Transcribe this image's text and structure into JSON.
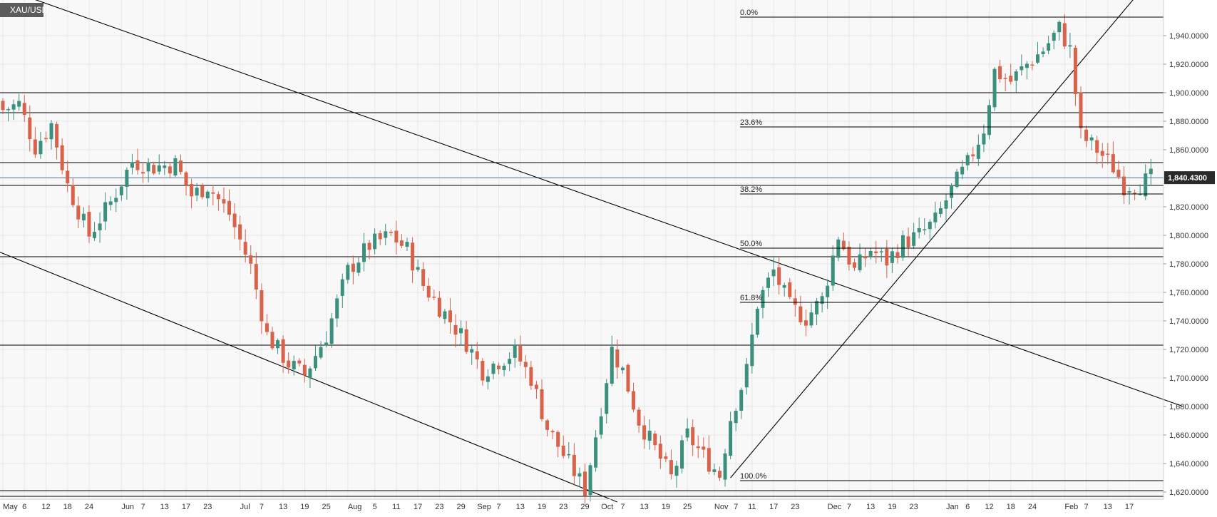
{
  "symbol": "XAU/USD",
  "chart_data": {
    "type": "candlestick",
    "title": "XAU/USD",
    "ylim": [
      1615,
      1965
    ],
    "y_ticks": [
      1620,
      1640,
      1660,
      1680,
      1700,
      1720,
      1740,
      1760,
      1780,
      1800,
      1820,
      1840,
      1860,
      1880,
      1900,
      1920,
      1940
    ],
    "y_tick_labels": [
      "1,620.0000",
      "1,640.0000",
      "1,660.0000",
      "1,680.0000",
      "1,700.0000",
      "1,720.0000",
      "1,740.0000",
      "1,760.0000",
      "1,780.0000",
      "1,800.0000",
      "1,820.0000",
      "1,840.0000",
      "1,860.0000",
      "1,880.0000",
      "1,900.0000",
      "1,920.0000",
      "1,940.0000"
    ],
    "x_ticks": [
      {
        "label": "May",
        "i": 0
      },
      {
        "label": "6",
        "i": 4
      },
      {
        "label": "12",
        "i": 8
      },
      {
        "label": "18",
        "i": 12
      },
      {
        "label": "24",
        "i": 16
      },
      {
        "label": "Jun",
        "i": 22
      },
      {
        "label": "7",
        "i": 26
      },
      {
        "label": "13",
        "i": 30
      },
      {
        "label": "17",
        "i": 34
      },
      {
        "label": "23",
        "i": 38
      },
      {
        "label": "Jul",
        "i": 44
      },
      {
        "label": "7",
        "i": 48
      },
      {
        "label": "13",
        "i": 52
      },
      {
        "label": "19",
        "i": 56
      },
      {
        "label": "25",
        "i": 60
      },
      {
        "label": "Aug",
        "i": 64
      },
      {
        "label": "5",
        "i": 69
      },
      {
        "label": "11",
        "i": 73
      },
      {
        "label": "17",
        "i": 77
      },
      {
        "label": "23",
        "i": 81
      },
      {
        "label": "29",
        "i": 85
      },
      {
        "label": "Sep",
        "i": 88
      },
      {
        "label": "7",
        "i": 92
      },
      {
        "label": "13",
        "i": 96
      },
      {
        "label": "19",
        "i": 100
      },
      {
        "label": "23",
        "i": 104
      },
      {
        "label": "29",
        "i": 108
      },
      {
        "label": "Oct",
        "i": 111
      },
      {
        "label": "7",
        "i": 115
      },
      {
        "label": "13",
        "i": 119
      },
      {
        "label": "19",
        "i": 123
      },
      {
        "label": "25",
        "i": 127
      },
      {
        "label": "Nov",
        "i": 132
      },
      {
        "label": "7",
        "i": 136
      },
      {
        "label": "11",
        "i": 139
      },
      {
        "label": "17",
        "i": 143
      },
      {
        "label": "23",
        "i": 147
      },
      {
        "label": "Dec",
        "i": 153
      },
      {
        "label": "7",
        "i": 157
      },
      {
        "label": "13",
        "i": 161
      },
      {
        "label": "19",
        "i": 165
      },
      {
        "label": "23",
        "i": 169
      },
      {
        "label": "Jan",
        "i": 175
      },
      {
        "label": "6",
        "i": 179
      },
      {
        "label": "12",
        "i": 183
      },
      {
        "label": "18",
        "i": 187
      },
      {
        "label": "24",
        "i": 191
      },
      {
        "label": "Feb",
        "i": 197
      },
      {
        "label": "7",
        "i": 201
      },
      {
        "label": "13",
        "i": 205
      },
      {
        "label": "17",
        "i": 209
      }
    ],
    "n_slots": 215,
    "close_path": [
      [
        0,
        1888
      ],
      [
        3,
        1892
      ],
      [
        6,
        1862
      ],
      [
        9,
        1878
      ],
      [
        12,
        1835
      ],
      [
        16,
        1800
      ],
      [
        20,
        1823
      ],
      [
        24,
        1852
      ],
      [
        28,
        1848
      ],
      [
        32,
        1850
      ],
      [
        35,
        1828
      ],
      [
        38,
        1835
      ],
      [
        42,
        1815
      ],
      [
        46,
        1778
      ],
      [
        49,
        1730
      ],
      [
        53,
        1710
      ],
      [
        56,
        1702
      ],
      [
        60,
        1730
      ],
      [
        64,
        1775
      ],
      [
        68,
        1793
      ],
      [
        72,
        1800
      ],
      [
        75,
        1790
      ],
      [
        78,
        1765
      ],
      [
        82,
        1745
      ],
      [
        86,
        1725
      ],
      [
        89,
        1705
      ],
      [
        92,
        1712
      ],
      [
        95,
        1718
      ],
      [
        98,
        1700
      ],
      [
        101,
        1665
      ],
      [
        105,
        1640
      ],
      [
        108,
        1622
      ],
      [
        110,
        1660
      ],
      [
        113,
        1720
      ],
      [
        115,
        1705
      ],
      [
        118,
        1670
      ],
      [
        121,
        1650
      ],
      [
        124,
        1630
      ],
      [
        127,
        1660
      ],
      [
        130,
        1645
      ],
      [
        133,
        1632
      ],
      [
        135,
        1672
      ],
      [
        138,
        1705
      ],
      [
        140,
        1752
      ],
      [
        143,
        1775
      ],
      [
        146,
        1750
      ],
      [
        149,
        1742
      ],
      [
        152,
        1755
      ],
      [
        155,
        1800
      ],
      [
        158,
        1775
      ],
      [
        161,
        1790
      ],
      [
        164,
        1782
      ],
      [
        167,
        1795
      ],
      [
        170,
        1800
      ],
      [
        173,
        1810
      ],
      [
        176,
        1832
      ],
      [
        179,
        1850
      ],
      [
        182,
        1875
      ],
      [
        184,
        1915
      ],
      [
        187,
        1908
      ],
      [
        190,
        1920
      ],
      [
        193,
        1930
      ],
      [
        196,
        1945
      ],
      [
        198,
        1930
      ],
      [
        200,
        1870
      ],
      [
        203,
        1860
      ],
      [
        206,
        1848
      ],
      [
        208,
        1835
      ],
      [
        211,
        1836
      ],
      [
        213,
        1840
      ]
    ],
    "last_price": "1,840.4300",
    "fib_levels": [
      {
        "label": "0.0%",
        "value": 1953
      },
      {
        "label": "23.6%",
        "value": 1876
      },
      {
        "label": "38.2%",
        "value": 1829
      },
      {
        "label": "50.0%",
        "value": 1791
      },
      {
        "label": "61.8%",
        "value": 1753
      },
      {
        "label": "100.0%",
        "value": 1628
      }
    ],
    "horizontal_levels": [
      1900,
      1886,
      1851,
      1835,
      1785,
      1723,
      1621,
      1617
    ],
    "trendlines": [
      {
        "from": [
          -5,
          1980
        ],
        "to": [
          219,
          1680
        ]
      },
      {
        "from": [
          -5,
          1795
        ],
        "to": [
          114,
          1613
        ]
      },
      {
        "from": [
          135,
          1630
        ],
        "to": [
          213,
          1980
        ]
      }
    ],
    "colors": {
      "up": "#3b8f7d",
      "down": "#d9624b",
      "line": "#000000",
      "grid": "#e8e8e8",
      "background": "#f8f8f8",
      "price_tag": "#2a2a2a",
      "current_price_line": "#5e7ea6"
    }
  }
}
